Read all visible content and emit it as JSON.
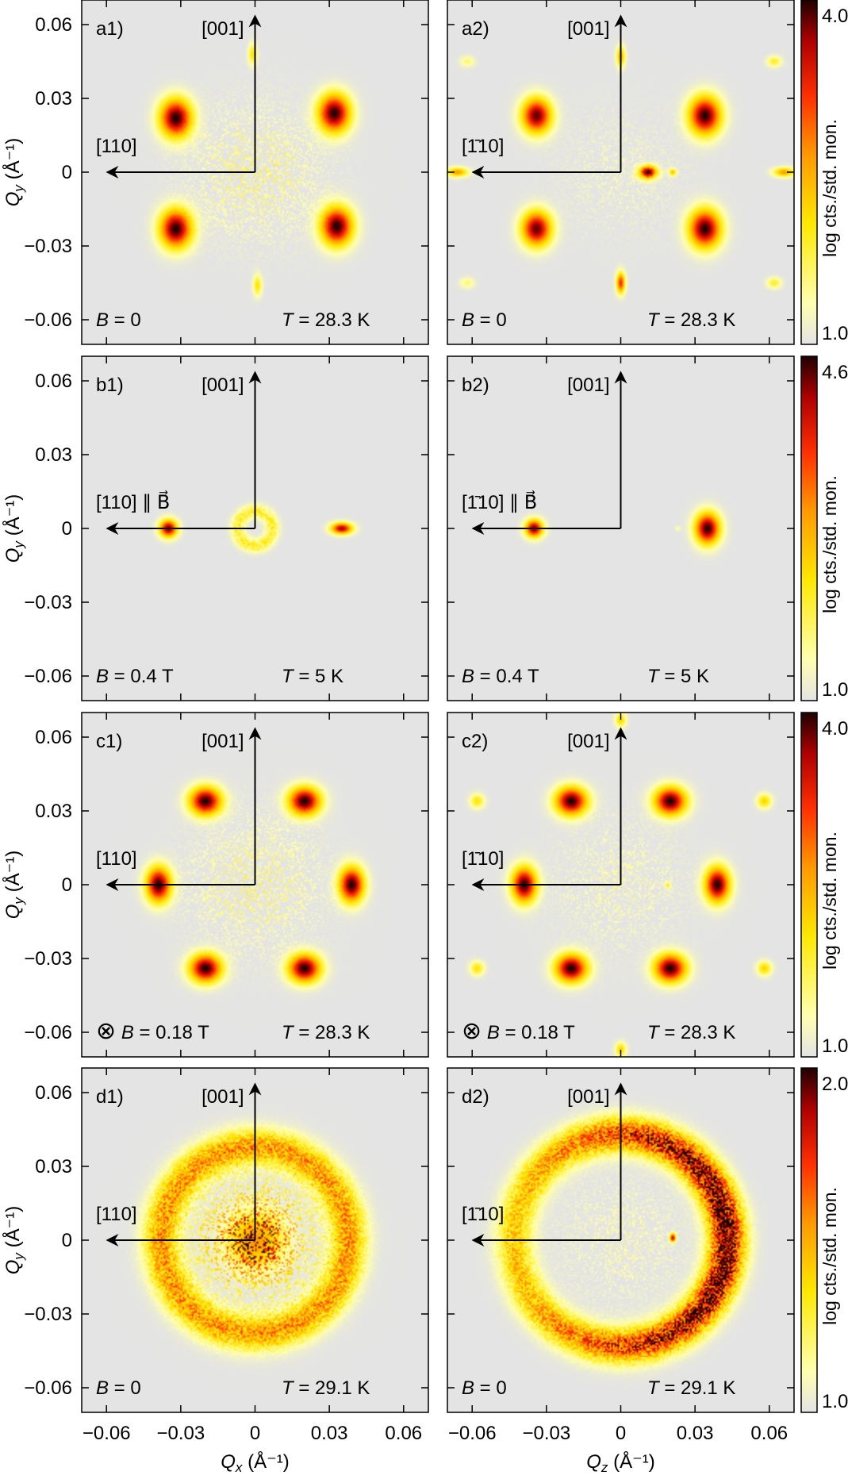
{
  "chart_data": {
    "type": "heatmap",
    "description_units": {
      "x_unit": "Å⁻¹",
      "y_unit": "Å⁻¹"
    },
    "axis": {
      "xlabel_left": "Qx (Å⁻¹)",
      "xlabel_right": "Qz (Å⁻¹)",
      "ylabel": "Qy (Å⁻¹)",
      "xlim": [
        -0.07,
        0.07
      ],
      "ylim": [
        -0.07,
        0.07
      ],
      "xticks": [
        -0.06,
        -0.03,
        0,
        0.03,
        0.06
      ],
      "yticks": [
        -0.06,
        -0.03,
        0,
        0.03,
        0.06
      ],
      "xtick_labels": [
        "−0.06",
        "−0.03",
        "0",
        "0.03",
        "0.06"
      ],
      "ytick_labels": [
        "−0.06",
        "−0.03",
        "0",
        "0.03",
        "0.06"
      ]
    },
    "rows": [
      {
        "colorbar": {
          "label": "log cts./std. mon.",
          "min_label": "1.0",
          "max_label": "4.0",
          "min": 1.0,
          "max": 4.0
        },
        "panels": [
          {
            "label": "a1)",
            "direction_up": "[001]",
            "direction_left": "[110]",
            "field": "B = 0",
            "temperature": "T = 28.3 K",
            "spots": [
              {
                "x": -0.032,
                "y": 0.022,
                "sx": 0.0045,
                "sy": 0.0055,
                "i": 1.0
              },
              {
                "x": 0.032,
                "y": 0.024,
                "sx": 0.0045,
                "sy": 0.0055,
                "i": 1.0
              },
              {
                "x": -0.032,
                "y": -0.023,
                "sx": 0.0045,
                "sy": 0.0055,
                "i": 1.0
              },
              {
                "x": 0.033,
                "y": -0.022,
                "sx": 0.0045,
                "sy": 0.0055,
                "i": 1.0
              },
              {
                "x": -0.001,
                "y": 0.048,
                "sx": 0.0012,
                "sy": 0.003,
                "i": 0.35
              },
              {
                "x": 0.001,
                "y": -0.046,
                "sx": 0.0012,
                "sy": 0.003,
                "i": 0.35
              }
            ],
            "ring": null,
            "center_noise": 0.25
          },
          {
            "label": "a2)",
            "direction_up": "[001]",
            "direction_left": "[1̄10]",
            "field": "B = 0",
            "temperature": "T = 28.3 K",
            "spots": [
              {
                "x": -0.034,
                "y": 0.023,
                "sx": 0.0042,
                "sy": 0.005,
                "i": 0.95
              },
              {
                "x": 0.034,
                "y": 0.023,
                "sx": 0.0045,
                "sy": 0.0055,
                "i": 1.0
              },
              {
                "x": -0.034,
                "y": -0.023,
                "sx": 0.0042,
                "sy": 0.005,
                "i": 0.95
              },
              {
                "x": 0.034,
                "y": -0.023,
                "sx": 0.0045,
                "sy": 0.0055,
                "i": 1.0
              },
              {
                "x": 0.011,
                "y": 0.0,
                "sx": 0.0025,
                "sy": 0.0018,
                "i": 0.95
              },
              {
                "x": 0.021,
                "y": 0.0,
                "sx": 0.001,
                "sy": 0.001,
                "i": 0.45
              },
              {
                "x": -0.066,
                "y": 0.0,
                "sx": 0.003,
                "sy": 0.0013,
                "i": 0.55
              },
              {
                "x": 0.066,
                "y": 0.0,
                "sx": 0.003,
                "sy": 0.0013,
                "i": 0.55
              },
              {
                "x": 0.0,
                "y": 0.047,
                "sx": 0.0012,
                "sy": 0.003,
                "i": 0.5
              },
              {
                "x": 0.0,
                "y": -0.045,
                "sx": 0.0012,
                "sy": 0.003,
                "i": 0.75
              },
              {
                "x": 0.062,
                "y": 0.045,
                "sx": 0.002,
                "sy": 0.0015,
                "i": 0.3
              },
              {
                "x": 0.062,
                "y": -0.045,
                "sx": 0.002,
                "sy": 0.0015,
                "i": 0.3
              },
              {
                "x": -0.062,
                "y": 0.045,
                "sx": 0.002,
                "sy": 0.0015,
                "i": 0.2
              },
              {
                "x": -0.062,
                "y": -0.045,
                "sx": 0.002,
                "sy": 0.0015,
                "i": 0.2
              }
            ],
            "ring": null,
            "center_noise": 0.1
          }
        ]
      },
      {
        "colorbar": {
          "label": "log cts./std. mon.",
          "min_label": "1.0",
          "max_label": "4.6",
          "min": 1.0,
          "max": 4.6
        },
        "panels": [
          {
            "label": "b1)",
            "direction_up": "[001]",
            "direction_left": "[110] ∥ B⃗",
            "field": "B = 0.4 T",
            "temperature": "T = 5 K",
            "spots": [
              {
                "x": -0.035,
                "y": 0.0,
                "sx": 0.0025,
                "sy": 0.0025,
                "i": 0.95
              },
              {
                "x": 0.035,
                "y": 0.0,
                "sx": 0.003,
                "sy": 0.0016,
                "i": 0.9
              }
            ],
            "ring": {
              "r": 0.007,
              "w": 0.002,
              "i": 0.3
            },
            "center_noise": 0.0
          },
          {
            "label": "b2)",
            "direction_up": "[001]",
            "direction_left": "[1̄10] ∥ B⃗",
            "field": "B = 0.4 T",
            "temperature": "T = 5 K",
            "spots": [
              {
                "x": -0.035,
                "y": 0.0,
                "sx": 0.0025,
                "sy": 0.0025,
                "i": 0.95
              },
              {
                "x": 0.035,
                "y": 0.0,
                "sx": 0.0035,
                "sy": 0.0045,
                "i": 1.0
              },
              {
                "x": 0.023,
                "y": 0.0,
                "sx": 0.0007,
                "sy": 0.0007,
                "i": 0.15
              }
            ],
            "ring": null,
            "center_noise": 0.0
          }
        ]
      },
      {
        "colorbar": {
          "label": "log cts./std. mon.",
          "min_label": "1.0",
          "max_label": "4.0",
          "min": 1.0,
          "max": 4.0
        },
        "panels": [
          {
            "label": "c1)",
            "direction_up": "[001]",
            "direction_left": "[110]",
            "field": "⊗ B = 0.18 T",
            "temperature": "T = 28.3 K",
            "spots": [
              {
                "x": -0.02,
                "y": 0.034,
                "sx": 0.0045,
                "sy": 0.004,
                "i": 1.0
              },
              {
                "x": 0.02,
                "y": 0.034,
                "sx": 0.0045,
                "sy": 0.004,
                "i": 1.0
              },
              {
                "x": -0.039,
                "y": 0.0,
                "sx": 0.0035,
                "sy": 0.005,
                "i": 1.0
              },
              {
                "x": 0.039,
                "y": 0.0,
                "sx": 0.0035,
                "sy": 0.005,
                "i": 1.0
              },
              {
                "x": -0.02,
                "y": -0.034,
                "sx": 0.0045,
                "sy": 0.004,
                "i": 1.0
              },
              {
                "x": 0.02,
                "y": -0.034,
                "sx": 0.0045,
                "sy": 0.004,
                "i": 1.0
              }
            ],
            "ring": null,
            "center_noise": 0.25
          },
          {
            "label": "c2)",
            "direction_up": "[001]",
            "direction_left": "[1̄10]",
            "field": "⊗ B = 0.18 T",
            "temperature": "T = 28.3 K",
            "spots": [
              {
                "x": -0.02,
                "y": 0.034,
                "sx": 0.0045,
                "sy": 0.004,
                "i": 1.0
              },
              {
                "x": 0.02,
                "y": 0.034,
                "sx": 0.0045,
                "sy": 0.004,
                "i": 1.0
              },
              {
                "x": -0.039,
                "y": 0.0,
                "sx": 0.0035,
                "sy": 0.005,
                "i": 1.0
              },
              {
                "x": 0.039,
                "y": 0.0,
                "sx": 0.0035,
                "sy": 0.005,
                "i": 1.0
              },
              {
                "x": -0.02,
                "y": -0.034,
                "sx": 0.0045,
                "sy": 0.004,
                "i": 1.0
              },
              {
                "x": 0.02,
                "y": -0.034,
                "sx": 0.0045,
                "sy": 0.004,
                "i": 1.0
              },
              {
                "x": 0.0,
                "y": 0.067,
                "sx": 0.0015,
                "sy": 0.002,
                "i": 0.4
              },
              {
                "x": 0.0,
                "y": -0.067,
                "sx": 0.0015,
                "sy": 0.002,
                "i": 0.4
              },
              {
                "x": -0.058,
                "y": 0.034,
                "sx": 0.002,
                "sy": 0.002,
                "i": 0.35
              },
              {
                "x": 0.058,
                "y": 0.034,
                "sx": 0.002,
                "sy": 0.002,
                "i": 0.4
              },
              {
                "x": -0.058,
                "y": -0.034,
                "sx": 0.002,
                "sy": 0.002,
                "i": 0.35
              },
              {
                "x": 0.058,
                "y": -0.034,
                "sx": 0.002,
                "sy": 0.002,
                "i": 0.4
              },
              {
                "x": 0.019,
                "y": 0.0,
                "sx": 0.0008,
                "sy": 0.0008,
                "i": 0.3
              }
            ],
            "ring": null,
            "center_noise": 0.15
          }
        ]
      },
      {
        "colorbar": {
          "label": "log cts./std. mon.",
          "min_label": "1.0",
          "max_label": "2.0",
          "min": 1.0,
          "max": 2.0
        },
        "panels": [
          {
            "label": "d1)",
            "direction_up": "[001]",
            "direction_left": "[110]",
            "field": "B = 0",
            "temperature": "T = 29.1 K",
            "spots": [
              {
                "x": 0.0,
                "y": 0.0,
                "sx": 0.008,
                "sy": 0.008,
                "i": 0.55
              }
            ],
            "ring": {
              "r": 0.038,
              "w": 0.005,
              "i": 0.55
            },
            "center_noise": 0.6
          },
          {
            "label": "d2)",
            "direction_up": "[001]",
            "direction_left": "[1̄10]",
            "field": "B = 0",
            "temperature": "T = 29.1 K",
            "spots": [
              {
                "x": 0.021,
                "y": 0.001,
                "sx": 0.0008,
                "sy": 0.0012,
                "i": 0.9
              }
            ],
            "ring": {
              "r": 0.043,
              "w": 0.005,
              "i": 0.75,
              "bias_right": 0.4
            },
            "center_noise": 0.15
          }
        ]
      }
    ]
  }
}
